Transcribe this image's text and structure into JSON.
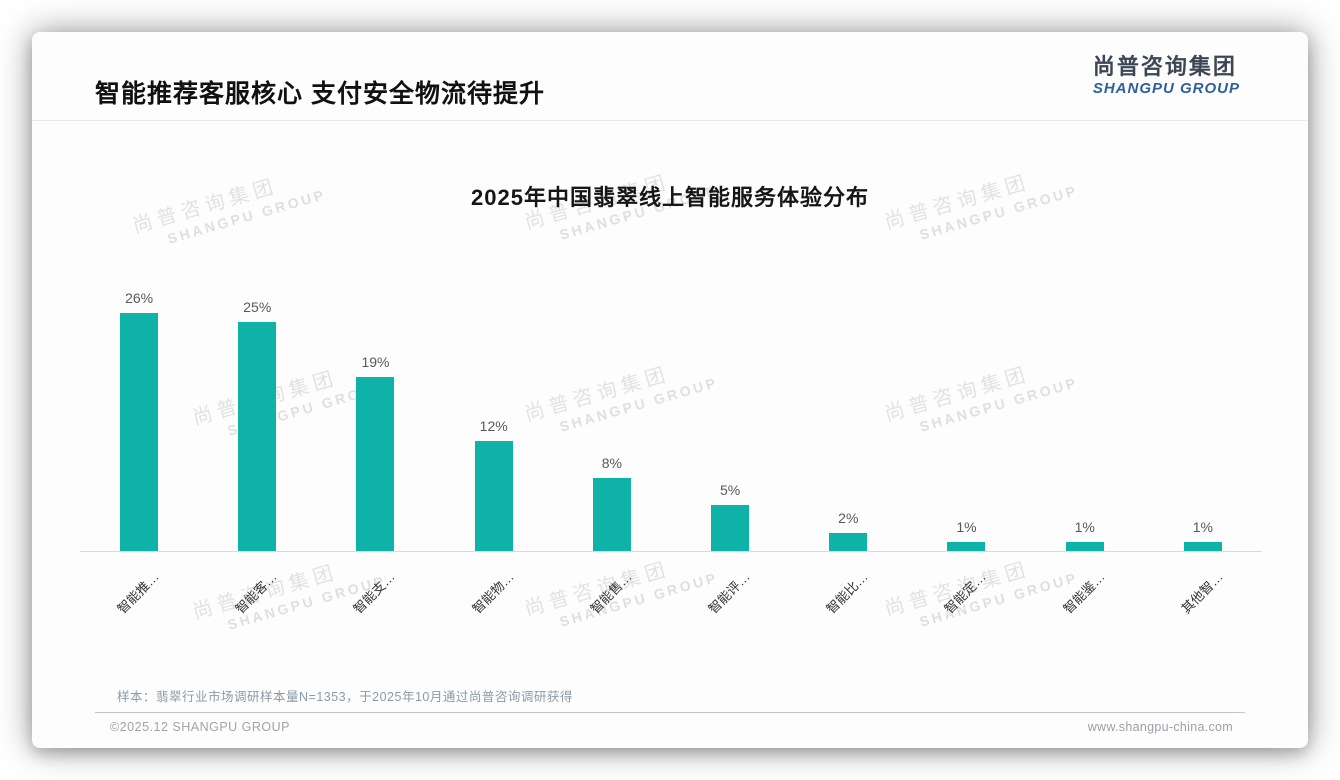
{
  "header": {
    "title": "智能推荐客服核心 支付安全物流待提升"
  },
  "logo": {
    "cn": "尚普咨询集团",
    "en": "SHANGPU GROUP"
  },
  "watermark": {
    "cn": "尚普咨询集团",
    "en": "SHANGPU GROUP"
  },
  "footnote": "样本：翡翠行业市场调研样本量N=1353，于2025年10月通过尚普咨询调研获得",
  "footer": {
    "left": "©2025.12 SHANGPU GROUP",
    "right": "www.shangpu-china.com"
  },
  "chart_data": {
    "type": "bar",
    "title": "2025年中国翡翠线上智能服务体验分布",
    "categories": [
      "智能推…",
      "智能客…",
      "智能支…",
      "智能物…",
      "智能售…",
      "智能评…",
      "智能比…",
      "智能定…",
      "智能鉴…",
      "其他智…"
    ],
    "values": [
      26,
      25,
      19,
      12,
      8,
      5,
      2,
      1,
      1,
      1
    ],
    "value_labels": [
      "26%",
      "25%",
      "19%",
      "12%",
      "8%",
      "5%",
      "2%",
      "1%",
      "1%",
      "1%"
    ],
    "bar_color": "#0fb2a6",
    "value_label_color": "#595959",
    "category_label_rotation_deg": -45,
    "ylim": [
      0,
      28
    ],
    "grid": false,
    "legend": false,
    "xlabel": "",
    "ylabel": ""
  }
}
